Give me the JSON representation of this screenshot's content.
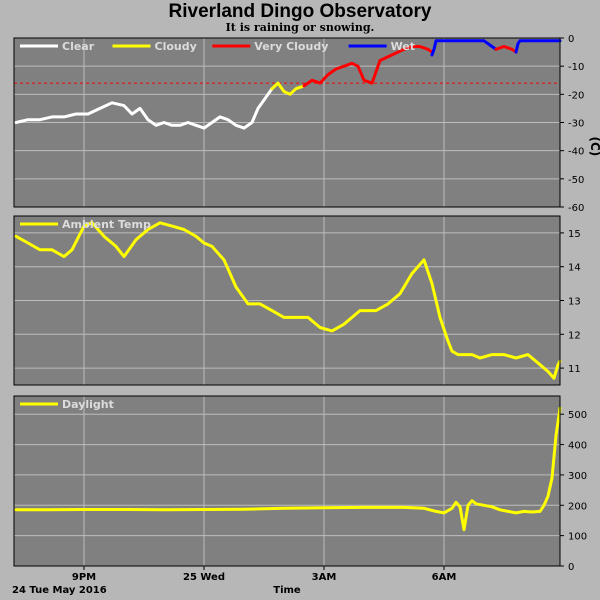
{
  "title": "Riverland Dingo Observatory",
  "subtitle": "It is raining or snowing.",
  "date_label": "24 Tue May 2016",
  "x_axis": {
    "label": "Time",
    "ticks": [
      {
        "label": "9PM",
        "h": 21
      },
      {
        "label": "25 Wed",
        "h": 24
      },
      {
        "label": "3AM",
        "h": 27
      },
      {
        "label": "6AM",
        "h": 30
      }
    ],
    "range_hours": [
      19.25,
      32.9
    ]
  },
  "colors": {
    "background": "#b7b7b7",
    "panel": "#808080",
    "grid": "#bdbdbd",
    "clear": "#ffffff",
    "cloudy": "#ffff00",
    "very_cloudy": "#ff0000",
    "wet": "#0000ff",
    "threshold": "#ff0000"
  },
  "chart_data": [
    {
      "type": "line",
      "name": "sky",
      "unit": "(C)",
      "ylim": [
        -60,
        0
      ],
      "yticks": [
        0,
        -10,
        -20,
        -30,
        -40,
        -50,
        -60
      ],
      "threshold": -16,
      "legend": [
        {
          "label": "Clear",
          "color": "#ffffff"
        },
        {
          "label": "Cloudy",
          "color": "#ffff00"
        },
        {
          "label": "Very Cloudy",
          "color": "#ff0000"
        },
        {
          "label": "Wet",
          "color": "#0000ff"
        }
      ],
      "series": [
        {
          "category": "Clear",
          "color": "#ffffff",
          "x": [
            19.3,
            19.6,
            19.9,
            20.2,
            20.5,
            20.8,
            21.1,
            21.4,
            21.7,
            22.0,
            22.2,
            22.4,
            22.6,
            22.8,
            23.0,
            23.2,
            23.4,
            23.6,
            23.8,
            24.0,
            24.2,
            24.4,
            24.6,
            24.8,
            25.0,
            25.2,
            25.35,
            25.5,
            25.6,
            25.7
          ],
          "y": [
            -30,
            -29,
            -29,
            -28,
            -28,
            -27,
            -27,
            -25,
            -23,
            -24,
            -27,
            -25,
            -29,
            -31,
            -30,
            -31,
            -31,
            -30,
            -31,
            -32,
            -30,
            -28,
            -29,
            -31,
            -32,
            -30,
            -25,
            -22,
            -20,
            -18
          ]
        },
        {
          "category": "Cloudy",
          "color": "#ffff00",
          "x": [
            25.7,
            25.85,
            26.0,
            26.15,
            26.3,
            26.5
          ],
          "y": [
            -18,
            -16,
            -19,
            -20,
            -18,
            -17
          ]
        },
        {
          "category": "Very Cloudy",
          "color": "#ff0000",
          "x": [
            26.5,
            26.7,
            26.9,
            27.1,
            27.3,
            27.5,
            27.7,
            27.85,
            28.0,
            28.2,
            28.4,
            28.7,
            29.0,
            29.2,
            29.4,
            29.6,
            29.7
          ],
          "y": [
            -17,
            -15,
            -16,
            -13,
            -11,
            -10,
            -9,
            -10,
            -15,
            -16,
            -8,
            -6,
            -4,
            -3,
            -3,
            -4,
            -5
          ]
        },
        {
          "category": "Wet",
          "color": "#0000ff",
          "x": [
            29.7,
            29.75,
            29.8,
            29.85,
            30.0,
            30.5,
            31.0,
            31.2,
            31.3
          ],
          "y": [
            -6,
            -4,
            -1,
            -1,
            -1,
            -1,
            -1,
            -3,
            -4
          ]
        },
        {
          "category": "Very Cloudy",
          "color": "#ff0000",
          "x": [
            31.3,
            31.5,
            31.7,
            31.8
          ],
          "y": [
            -4,
            -3,
            -4,
            -5
          ]
        },
        {
          "category": "Wet",
          "color": "#0000ff",
          "x": [
            31.8,
            31.85,
            31.9,
            32.2,
            32.5,
            32.8,
            32.9
          ],
          "y": [
            -5,
            -2,
            -1,
            -1,
            -1,
            -1,
            -1
          ]
        }
      ]
    },
    {
      "type": "line",
      "name": "ambient",
      "legend": [
        {
          "label": "Ambient Temp",
          "color": "#ffff00"
        }
      ],
      "ylim": [
        10.5,
        15.5
      ],
      "yticks": [
        11,
        12,
        13,
        14,
        15
      ],
      "series": [
        {
          "name": "Ambient Temp",
          "color": "#ffff00",
          "x": [
            19.3,
            19.6,
            19.9,
            20.2,
            20.5,
            20.7,
            21.0,
            21.2,
            21.5,
            21.8,
            22.0,
            22.3,
            22.6,
            22.9,
            23.2,
            23.5,
            23.8,
            24.0,
            24.2,
            24.5,
            24.8,
            25.1,
            25.4,
            25.7,
            26.0,
            26.3,
            26.6,
            26.9,
            27.2,
            27.5,
            27.7,
            27.9,
            28.1,
            28.3,
            28.6,
            28.9,
            29.2,
            29.5,
            29.7,
            29.9,
            30.1,
            30.2,
            30.35,
            30.5,
            30.7,
            30.9,
            31.2,
            31.5,
            31.8,
            32.1,
            32.4,
            32.6,
            32.75,
            32.85,
            32.9
          ],
          "y": [
            14.9,
            14.7,
            14.5,
            14.5,
            14.3,
            14.5,
            15.2,
            15.3,
            14.9,
            14.6,
            14.3,
            14.8,
            15.1,
            15.3,
            15.2,
            15.1,
            14.9,
            14.7,
            14.6,
            14.2,
            13.4,
            12.9,
            12.9,
            12.7,
            12.5,
            12.5,
            12.5,
            12.2,
            12.1,
            12.3,
            12.5,
            12.7,
            12.7,
            12.7,
            12.9,
            13.2,
            13.8,
            14.2,
            13.5,
            12.5,
            11.8,
            11.5,
            11.4,
            11.4,
            11.4,
            11.3,
            11.4,
            11.4,
            11.3,
            11.4,
            11.1,
            10.9,
            10.7,
            11.1,
            11.2
          ]
        }
      ]
    },
    {
      "type": "line",
      "name": "daylight",
      "legend": [
        {
          "label": "Daylight",
          "color": "#ffff00"
        }
      ],
      "ylim": [
        0,
        560
      ],
      "yticks": [
        0,
        100,
        200,
        300,
        400,
        500
      ],
      "series": [
        {
          "name": "Daylight",
          "color": "#ffff00",
          "x": [
            19.3,
            20.0,
            21.0,
            22.0,
            23.0,
            24.0,
            25.0,
            26.0,
            27.0,
            28.0,
            29.0,
            29.5,
            29.8,
            30.0,
            30.2,
            30.3,
            30.4,
            30.5,
            30.6,
            30.7,
            30.8,
            31.0,
            31.2,
            31.4,
            31.6,
            31.8,
            32.0,
            32.2,
            32.4,
            32.5,
            32.6,
            32.7,
            32.8,
            32.9
          ],
          "y": [
            185,
            185,
            186,
            186,
            185,
            186,
            187,
            190,
            192,
            193,
            193,
            190,
            180,
            175,
            190,
            210,
            195,
            120,
            200,
            215,
            205,
            200,
            195,
            185,
            180,
            175,
            180,
            178,
            180,
            200,
            230,
            290,
            430,
            520
          ]
        }
      ]
    }
  ]
}
